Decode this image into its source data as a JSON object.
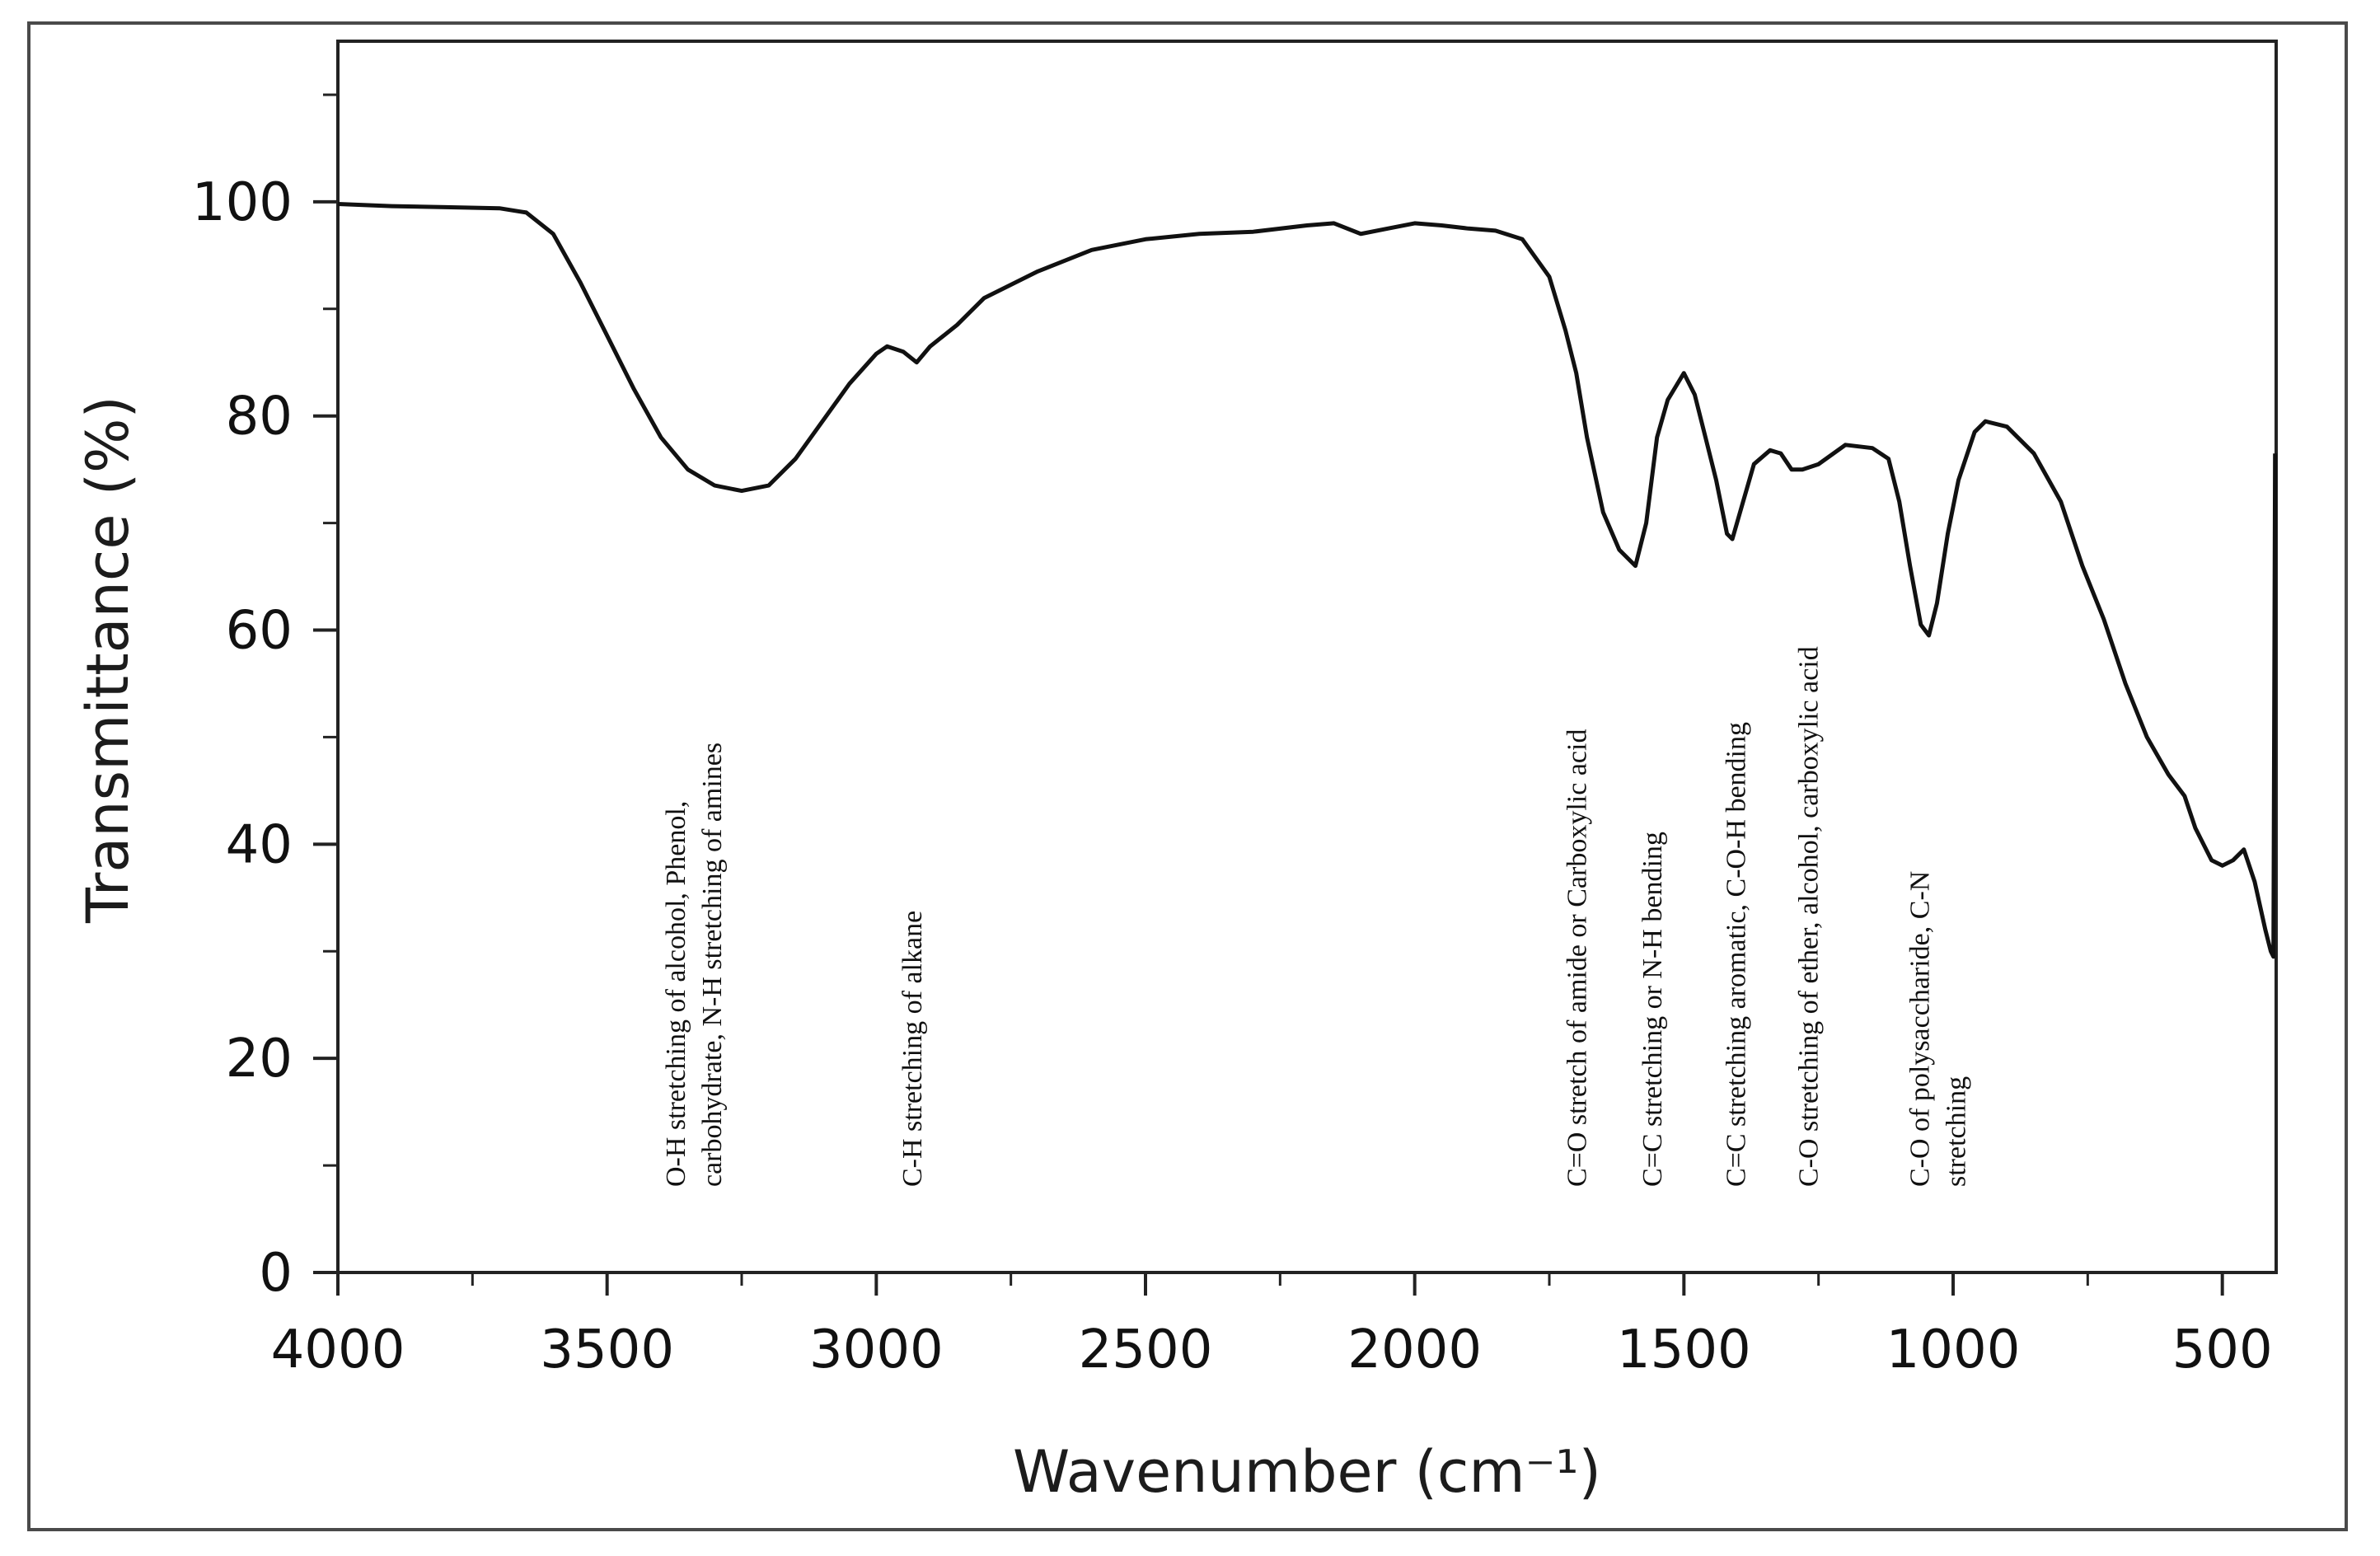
{
  "chart_data": {
    "type": "line",
    "title": "",
    "xlabel": "Wavenumber (cm⁻¹)",
    "ylabel": "Transmittance (%)",
    "xlim": [
      4000,
      400
    ],
    "ylim": [
      0,
      115
    ],
    "x_ticks": [
      4000,
      3500,
      3000,
      2500,
      2000,
      1500,
      1000,
      500
    ],
    "x_tick_labels": [
      "4000",
      "3500",
      "3000",
      "2500",
      "2000",
      "1500",
      "1000",
      "500"
    ],
    "y_ticks": [
      0,
      20,
      40,
      60,
      80,
      100
    ],
    "y_tick_labels": [
      "0",
      "20",
      "40",
      "60",
      "80",
      "100"
    ],
    "series": [
      {
        "name": "FTIR spectrum",
        "color": "#111111",
        "points": [
          [
            4000,
            99.8
          ],
          [
            3900,
            99.6
          ],
          [
            3800,
            99.5
          ],
          [
            3700,
            99.4
          ],
          [
            3650,
            99.0
          ],
          [
            3600,
            97.0
          ],
          [
            3550,
            92.5
          ],
          [
            3500,
            87.5
          ],
          [
            3450,
            82.5
          ],
          [
            3400,
            78.0
          ],
          [
            3350,
            75.0
          ],
          [
            3300,
            73.5
          ],
          [
            3250,
            73.0
          ],
          [
            3200,
            73.5
          ],
          [
            3150,
            76.0
          ],
          [
            3100,
            79.5
          ],
          [
            3050,
            83.0
          ],
          [
            3000,
            85.8
          ],
          [
            2980,
            86.5
          ],
          [
            2950,
            86.0
          ],
          [
            2925,
            85.0
          ],
          [
            2900,
            86.5
          ],
          [
            2850,
            88.5
          ],
          [
            2800,
            91.0
          ],
          [
            2700,
            93.5
          ],
          [
            2600,
            95.5
          ],
          [
            2500,
            96.5
          ],
          [
            2400,
            97.0
          ],
          [
            2300,
            97.2
          ],
          [
            2200,
            97.8
          ],
          [
            2150,
            98.0
          ],
          [
            2100,
            97.0
          ],
          [
            2050,
            97.5
          ],
          [
            2000,
            98.0
          ],
          [
            1950,
            97.8
          ],
          [
            1900,
            97.5
          ],
          [
            1850,
            97.3
          ],
          [
            1800,
            96.5
          ],
          [
            1750,
            93.0
          ],
          [
            1720,
            88.0
          ],
          [
            1700,
            84.0
          ],
          [
            1680,
            78.0
          ],
          [
            1650,
            71.0
          ],
          [
            1620,
            67.5
          ],
          [
            1590,
            66.0
          ],
          [
            1570,
            70.0
          ],
          [
            1550,
            78.0
          ],
          [
            1530,
            81.5
          ],
          [
            1500,
            84.0
          ],
          [
            1480,
            82.0
          ],
          [
            1460,
            78.0
          ],
          [
            1440,
            74.0
          ],
          [
            1420,
            69.0
          ],
          [
            1410,
            68.5
          ],
          [
            1390,
            72.0
          ],
          [
            1370,
            75.5
          ],
          [
            1340,
            76.8
          ],
          [
            1320,
            76.5
          ],
          [
            1300,
            75.0
          ],
          [
            1280,
            75.0
          ],
          [
            1250,
            75.5
          ],
          [
            1200,
            77.3
          ],
          [
            1150,
            77.0
          ],
          [
            1120,
            76.0
          ],
          [
            1100,
            72.0
          ],
          [
            1080,
            66.0
          ],
          [
            1060,
            60.5
          ],
          [
            1045,
            59.5
          ],
          [
            1030,
            62.5
          ],
          [
            1010,
            69.0
          ],
          [
            990,
            74.0
          ],
          [
            960,
            78.5
          ],
          [
            940,
            79.5
          ],
          [
            900,
            79.0
          ],
          [
            850,
            76.5
          ],
          [
            800,
            72.0
          ],
          [
            760,
            66.0
          ],
          [
            720,
            61.0
          ],
          [
            680,
            55.0
          ],
          [
            640,
            50.0
          ],
          [
            600,
            46.5
          ],
          [
            570,
            44.5
          ],
          [
            550,
            41.5
          ],
          [
            520,
            38.5
          ],
          [
            500,
            38.0
          ],
          [
            480,
            38.5
          ],
          [
            460,
            39.5
          ],
          [
            440,
            36.5
          ],
          [
            420,
            32.0
          ],
          [
            410,
            30.0
          ],
          [
            405,
            29.5
          ],
          [
            402,
            76.5
          ]
        ]
      }
    ],
    "annotations": [
      {
        "x": 3340,
        "lines": [
          "O-H stretching of alcohol, Phenol,",
          "carbohydrate, N-H stretching of amines"
        ]
      },
      {
        "x": 2935,
        "lines": [
          "C-H stretching of alkane"
        ]
      },
      {
        "x": 1700,
        "lines": [
          "C=O stretch of amide or Carboxylic acid"
        ]
      },
      {
        "x": 1560,
        "lines": [
          "C=C stretching or N-H  bending"
        ]
      },
      {
        "x": 1405,
        "lines": [
          "C=C stretching aromatic, C-O-H bending"
        ]
      },
      {
        "x": 1270,
        "lines": [
          "C-O stretching of ether, alcohol, carboxylic acid"
        ]
      },
      {
        "x": 1030,
        "lines": [
          "C-O of polysaccharide,  C-N",
          "stretching"
        ]
      }
    ]
  }
}
